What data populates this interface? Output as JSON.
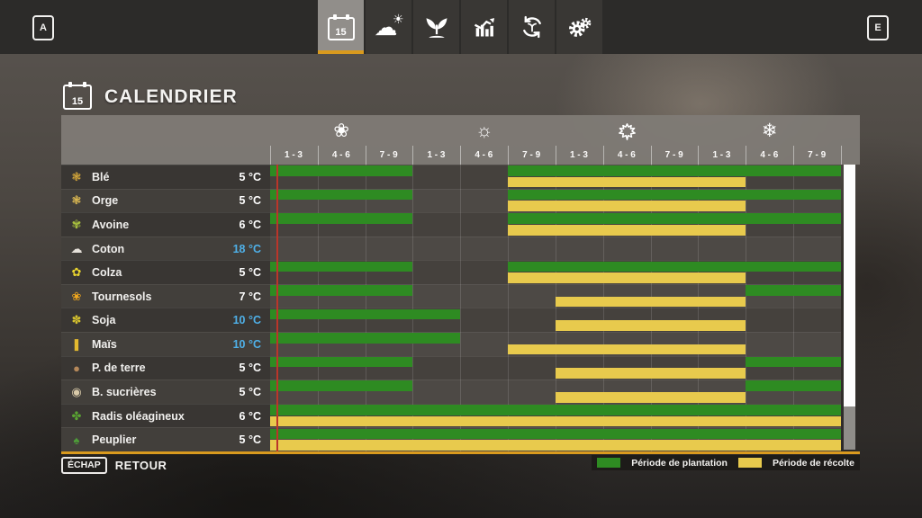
{
  "topbar": {
    "left_key": "A",
    "right_key": "E",
    "calendar_day": "15",
    "tabs": [
      {
        "name": "calendar",
        "icon": "calendar",
        "active": true
      },
      {
        "name": "weather",
        "icon": "weather",
        "active": false
      },
      {
        "name": "crops",
        "icon": "seedling",
        "active": false
      },
      {
        "name": "statistics",
        "icon": "stats",
        "active": false
      },
      {
        "name": "rotation",
        "icon": "rotation",
        "active": false
      },
      {
        "name": "settings",
        "icon": "gears",
        "active": false
      }
    ]
  },
  "header": {
    "title": "CALENDRIER"
  },
  "calendar": {
    "seasons": [
      {
        "name": "spring",
        "icon": "flower-icon",
        "glyph": "❀"
      },
      {
        "name": "summer",
        "icon": "sun-icon",
        "glyph": "☼"
      },
      {
        "name": "autumn",
        "icon": "maple-leaf-icon",
        "glyph": ""
      },
      {
        "name": "winter",
        "icon": "snowflake-icon",
        "glyph": "❄"
      }
    ],
    "period_labels": [
      "1 - 3",
      "4 - 6",
      "7 - 9"
    ],
    "rows": [
      {
        "name": "Blé",
        "temp": "5 °C",
        "temp_cold": false,
        "icon": "wheat",
        "icon_char": "❃",
        "icon_color": "#d8a93a",
        "plant": [
          [
            1,
            3
          ],
          [
            6,
            12
          ]
        ],
        "harvest": [
          [
            6,
            10
          ]
        ]
      },
      {
        "name": "Orge",
        "temp": "5 °C",
        "temp_cold": false,
        "icon": "barley",
        "icon_char": "❃",
        "icon_color": "#e5c053",
        "plant": [
          [
            1,
            3
          ],
          [
            6,
            12
          ]
        ],
        "harvest": [
          [
            6,
            10
          ]
        ]
      },
      {
        "name": "Avoine",
        "temp": "6 °C",
        "temp_cold": false,
        "icon": "oat",
        "icon_char": "✾",
        "icon_color": "#a8c03e",
        "plant": [
          [
            1,
            3
          ],
          [
            6,
            12
          ]
        ],
        "harvest": [
          [
            6,
            10
          ]
        ]
      },
      {
        "name": "Coton",
        "temp": "18 °C",
        "temp_cold": true,
        "icon": "cotton",
        "icon_char": "☁",
        "icon_color": "#e6e1da",
        "plant": [],
        "harvest": []
      },
      {
        "name": "Colza",
        "temp": "5 °C",
        "temp_cold": false,
        "icon": "canola",
        "icon_char": "✿",
        "icon_color": "#e9d42e",
        "plant": [
          [
            1,
            3
          ],
          [
            6,
            12
          ]
        ],
        "harvest": [
          [
            6,
            10
          ]
        ]
      },
      {
        "name": "Tournesols",
        "temp": "7 °C",
        "temp_cold": false,
        "icon": "sunflower",
        "icon_char": "❀",
        "icon_color": "#f2a81d",
        "plant": [
          [
            1,
            3
          ],
          [
            11,
            12
          ]
        ],
        "harvest": [
          [
            7,
            10
          ]
        ]
      },
      {
        "name": "Soja",
        "temp": "10 °C",
        "temp_cold": true,
        "icon": "soybean",
        "icon_char": "✽",
        "icon_color": "#d6c22e",
        "plant": [
          [
            1,
            4
          ]
        ],
        "harvest": [
          [
            7,
            10
          ]
        ]
      },
      {
        "name": "Maïs",
        "temp": "10 °C",
        "temp_cold": true,
        "icon": "corn",
        "icon_char": "❚",
        "icon_color": "#e3b92f",
        "plant": [
          [
            1,
            4
          ]
        ],
        "harvest": [
          [
            6,
            10
          ]
        ]
      },
      {
        "name": "P. de terre",
        "temp": "5 °C",
        "temp_cold": false,
        "icon": "potato",
        "icon_char": "●",
        "icon_color": "#b5885a",
        "plant": [
          [
            1,
            3
          ],
          [
            11,
            12
          ]
        ],
        "harvest": [
          [
            7,
            10
          ]
        ]
      },
      {
        "name": "B. sucrières",
        "temp": "5 °C",
        "temp_cold": false,
        "icon": "sugar-beet",
        "icon_char": "◉",
        "icon_color": "#d8c9a8",
        "plant": [
          [
            1,
            3
          ],
          [
            11,
            12
          ]
        ],
        "harvest": [
          [
            7,
            10
          ]
        ]
      },
      {
        "name": "Radis oléagineux",
        "temp": "6 °C",
        "temp_cold": false,
        "icon": "oilseed-radish",
        "icon_char": "✤",
        "icon_color": "#5aa532",
        "plant": [
          [
            1,
            12
          ]
        ],
        "harvest": [
          [
            1,
            12
          ]
        ]
      },
      {
        "name": "Peuplier",
        "temp": "5 °C",
        "temp_cold": false,
        "icon": "poplar",
        "icon_char": "♠",
        "icon_color": "#4d9c38",
        "plant": [
          [
            1,
            12
          ]
        ],
        "harvest": [
          [
            1,
            12
          ]
        ]
      }
    ]
  },
  "legend": [
    {
      "label": "Période de plantation",
      "color": "#2e8b22"
    },
    {
      "label": "Période de récolte",
      "color": "#e8ca4d"
    }
  ],
  "footer": {
    "key": "ÉCHAP",
    "label": "RETOUR"
  },
  "colors": {
    "plant_green": "#2e8b22",
    "harvest_yellow": "#e8ca4d",
    "accent_orange": "#d99a1e",
    "current_day_red": "#bb352a",
    "cold_temp_blue": "#4fb0e8",
    "scroll_thumb": "#fdfdfd",
    "scroll_track": "#8f8d89"
  }
}
